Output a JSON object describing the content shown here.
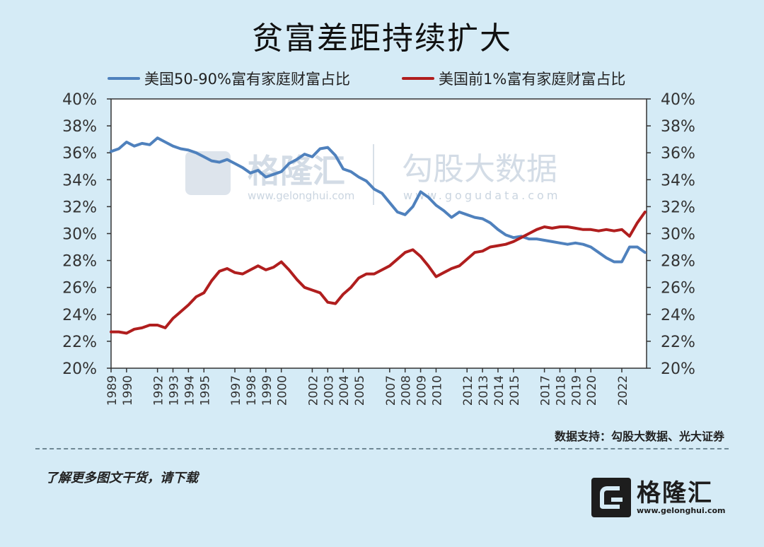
{
  "title": "贫富差距持续扩大",
  "source": "数据支持：勾股大数据、光大证券",
  "footer": "了解更多图文干货，请下载",
  "logo": {
    "name": "格隆汇",
    "url": "www.gelonghui.com"
  },
  "watermark": {
    "left_name": "格隆汇",
    "left_url": "www.gelonghui.com",
    "right_name": "勾股大数据",
    "right_url": "www.gogudata.com"
  },
  "colors": {
    "blue": "#4f81bd",
    "red": "#b01e1e",
    "background": "#d5ebf6",
    "plot_bg": "#ffffff"
  },
  "chart_data": {
    "type": "line",
    "ylim": [
      20,
      40
    ],
    "y2lim": [
      20,
      40
    ],
    "yticks": [
      "20%",
      "22%",
      "24%",
      "26%",
      "28%",
      "30%",
      "32%",
      "34%",
      "36%",
      "38%",
      "40%"
    ],
    "xlim": [
      1989,
      2023.6
    ],
    "xticks": [
      "1989",
      "1990",
      "1992",
      "1993",
      "1994",
      "1995",
      "1997",
      "1998",
      "1999",
      "2000",
      "2002",
      "2003",
      "2004",
      "2005",
      "2007",
      "2008",
      "2009",
      "2010",
      "2012",
      "2013",
      "2014",
      "2015",
      "2017",
      "2018",
      "2019",
      "2020",
      "2022"
    ],
    "xtick_positions": [
      1989,
      1990,
      1992,
      1993,
      1994,
      1995,
      1997,
      1998,
      1999,
      2000,
      2002,
      2003,
      2004,
      2005,
      2007,
      2008,
      2009,
      2010,
      2012,
      2013,
      2014,
      2015,
      2017,
      2018,
      2019,
      2020,
      2022
    ],
    "legend_placement": "top",
    "series": [
      {
        "name": "美国50-90%富有家庭财富占比",
        "color": "#4f81bd",
        "x": [
          1989,
          1989.5,
          1990,
          1990.5,
          1991,
          1991.5,
          1992,
          1992.5,
          1993,
          1993.5,
          1994,
          1994.5,
          1995,
          1995.5,
          1996,
          1996.5,
          1997,
          1997.5,
          1998,
          1998.5,
          1999,
          1999.5,
          2000,
          2000.5,
          2001,
          2001.5,
          2002,
          2002.5,
          2003,
          2003.5,
          2004,
          2004.5,
          2005,
          2005.5,
          2006,
          2006.5,
          2007,
          2007.5,
          2008,
          2008.5,
          2009,
          2009.5,
          2010,
          2010.5,
          2011,
          2011.5,
          2012,
          2012.5,
          2013,
          2013.5,
          2014,
          2014.5,
          2015,
          2015.5,
          2016,
          2016.5,
          2017,
          2017.5,
          2018,
          2018.5,
          2019,
          2019.5,
          2020,
          2020.5,
          2021,
          2021.5,
          2022,
          2022.5,
          2023,
          2023.5
        ],
        "y": [
          36.1,
          36.3,
          36.8,
          36.5,
          36.7,
          36.6,
          37.1,
          36.8,
          36.5,
          36.3,
          36.2,
          36.0,
          35.7,
          35.4,
          35.3,
          35.5,
          35.2,
          34.9,
          34.5,
          34.7,
          34.2,
          34.4,
          34.6,
          35.2,
          35.5,
          35.9,
          35.7,
          36.3,
          36.4,
          35.8,
          34.8,
          34.6,
          34.2,
          33.9,
          33.3,
          33.0,
          32.3,
          31.6,
          31.4,
          32.0,
          33.1,
          32.7,
          32.1,
          31.7,
          31.2,
          31.6,
          31.4,
          31.2,
          31.1,
          30.8,
          30.3,
          29.9,
          29.7,
          29.8,
          29.6,
          29.6,
          29.5,
          29.4,
          29.3,
          29.2,
          29.3,
          29.2,
          29.0,
          28.6,
          28.2,
          27.9,
          27.9,
          29.0,
          29.0,
          28.6
        ]
      },
      {
        "name": "美国前1%富有家庭财富占比",
        "color": "#b01e1e",
        "x": [
          1989,
          1989.5,
          1990,
          1990.5,
          1991,
          1991.5,
          1992,
          1992.5,
          1993,
          1993.5,
          1994,
          1994.5,
          1995,
          1995.5,
          1996,
          1996.5,
          1997,
          1997.5,
          1998,
          1998.5,
          1999,
          1999.5,
          2000,
          2000.5,
          2001,
          2001.5,
          2002,
          2002.5,
          2003,
          2003.5,
          2004,
          2004.5,
          2005,
          2005.5,
          2006,
          2006.5,
          2007,
          2007.5,
          2008,
          2008.5,
          2009,
          2009.5,
          2010,
          2010.5,
          2011,
          2011.5,
          2012,
          2012.5,
          2013,
          2013.5,
          2014,
          2014.5,
          2015,
          2015.5,
          2016,
          2016.5,
          2017,
          2017.5,
          2018,
          2018.5,
          2019,
          2019.5,
          2020,
          2020.5,
          2021,
          2021.5,
          2022,
          2022.5,
          2023,
          2023.5
        ],
        "y": [
          22.7,
          22.7,
          22.6,
          22.9,
          23.0,
          23.2,
          23.2,
          23.0,
          23.7,
          24.2,
          24.7,
          25.3,
          25.6,
          26.5,
          27.2,
          27.4,
          27.1,
          27.0,
          27.3,
          27.6,
          27.3,
          27.5,
          27.9,
          27.3,
          26.6,
          26.0,
          25.8,
          25.6,
          24.9,
          24.8,
          25.5,
          26.0,
          26.7,
          27.0,
          27.0,
          27.3,
          27.6,
          28.1,
          28.6,
          28.8,
          28.3,
          27.6,
          26.8,
          27.1,
          27.4,
          27.6,
          28.1,
          28.6,
          28.7,
          29.0,
          29.1,
          29.2,
          29.4,
          29.7,
          30.0,
          30.3,
          30.5,
          30.4,
          30.5,
          30.5,
          30.4,
          30.3,
          30.3,
          30.2,
          30.3,
          30.2,
          30.3,
          29.8,
          30.8,
          31.6
        ]
      }
    ]
  }
}
